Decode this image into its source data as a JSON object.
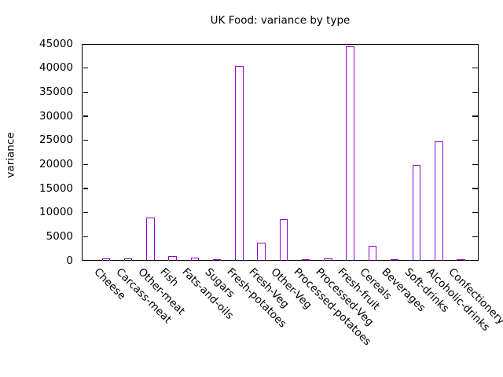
{
  "colors": {
    "bar_outline": "#9400D3",
    "axis": "#000000",
    "background": "#ffffff",
    "text": "#000000"
  },
  "chart_data": {
    "type": "bar",
    "title": "UK Food: variance by type",
    "xlabel": "",
    "ylabel": "variance",
    "categories": [
      "Cheese",
      "Carcass-meat",
      "Other-meat",
      "Fish",
      "Fats-and-oils",
      "Sugars",
      "Fresh-potatoes",
      "Fresh-Veg",
      "Other-Veg",
      "Processed-potatoes",
      "Processed-Veg",
      "Fresh-fruit",
      "Cereals",
      "Beverages",
      "Soft-drinks",
      "Alcoholic-drinks",
      "Confectionery"
    ],
    "values": [
      355.6,
      272.3,
      8728.7,
      873.7,
      500.3,
      239.6,
      40302.9,
      3622.7,
      8550.9,
      188.7,
      248.7,
      44357.7,
      2987.7,
      123.7,
      19772.0,
      24558.9,
      108.9
    ],
    "ylim": [
      0,
      45000
    ],
    "ytick_interval": 5000,
    "ytick_labels": [
      "0",
      "5000",
      "10000",
      "15000",
      "20000",
      "25000",
      "30000",
      "35000",
      "40000",
      "45000"
    ],
    "bar_style": "outline",
    "grid": false,
    "legend": "none",
    "x_label_rotation_deg": -45
  }
}
